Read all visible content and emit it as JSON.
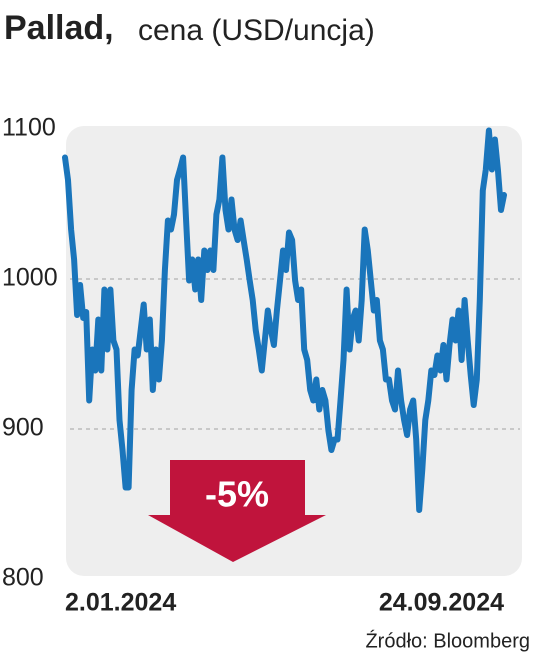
{
  "chart_data": {
    "type": "line",
    "title": "Pallad,",
    "subtitle": "cena (USD/uncja)",
    "annotation": "-5%",
    "source": "Źródło: Bloomberg",
    "color": "#1a75bb",
    "ylim": [
      800,
      1100
    ],
    "yticks": [
      800,
      900,
      1000,
      1100
    ],
    "grid": true,
    "categories": [
      "2.01.2024",
      null,
      null,
      null,
      null,
      null,
      null,
      null,
      null,
      null,
      null,
      null,
      null,
      null,
      null,
      null,
      null,
      null,
      null,
      null,
      null,
      null,
      null,
      null,
      null,
      null,
      null,
      null,
      null,
      null,
      null,
      null,
      null,
      null,
      null,
      null,
      null,
      null,
      null,
      null,
      null,
      null,
      null,
      null,
      null,
      null,
      null,
      null,
      null,
      null,
      null,
      null,
      null,
      null,
      null,
      null,
      null,
      null,
      null,
      null,
      null,
      null,
      null,
      null,
      null,
      null,
      null,
      null,
      null,
      null,
      null,
      null,
      null,
      null,
      null,
      null,
      null,
      null,
      null,
      null,
      null,
      null,
      null,
      null,
      null,
      null,
      null,
      null,
      null,
      null,
      null,
      null,
      null,
      null,
      null,
      null,
      null,
      null,
      null,
      null,
      null,
      null,
      null,
      null,
      null,
      null,
      null,
      null,
      null,
      null,
      null,
      null,
      null,
      null,
      null,
      null,
      null,
      null,
      null,
      null,
      null,
      null,
      null,
      null,
      null,
      null,
      null,
      null,
      null,
      null,
      null,
      null,
      null,
      null,
      null,
      null,
      null,
      null,
      null,
      null,
      null,
      null,
      null,
      null,
      null,
      "24.09.2024"
    ],
    "values": [
      1081,
      1066,
      1033,
      1013,
      976,
      996,
      974,
      978,
      919,
      953,
      939,
      973,
      939,
      993,
      953,
      993,
      959,
      953,
      906,
      886,
      861,
      861,
      926,
      953,
      949,
      966,
      983,
      953,
      973,
      926,
      953,
      933,
      959,
      1006,
      1039,
      1033,
      1043,
      1066,
      1073,
      1081,
      1039,
      999,
      1013,
      993,
      1013,
      986,
      1019,
      1006,
      1019,
      1006,
      1043,
      1053,
      1081,
      1046,
      1033,
      1053,
      1033,
      1026,
      1039,
      1026,
      1013,
      999,
      986,
      966,
      953,
      939,
      959,
      979,
      966,
      956,
      979,
      999,
      1019,
      1006,
      1031,
      1026,
      999,
      986,
      993,
      953,
      946,
      926,
      919,
      933,
      913,
      926,
      919,
      899,
      886,
      893,
      893,
      919,
      946,
      993,
      953,
      973,
      979,
      959,
      986,
      1033,
      1019,
      999,
      979,
      986,
      959,
      953,
      933,
      933,
      919,
      913,
      939,
      919,
      906,
      896,
      913,
      919,
      893,
      846,
      873,
      906,
      919,
      939,
      936,
      949,
      939,
      956,
      933,
      956,
      973,
      959,
      979,
      946,
      986,
      959,
      936,
      916,
      933,
      986,
      1059,
      1073,
      1099,
      1073,
      1093,
      1073,
      1046,
      1056
    ]
  }
}
